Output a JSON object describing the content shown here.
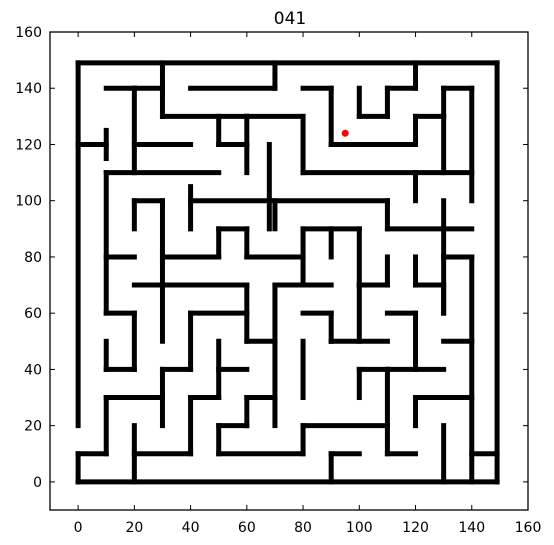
{
  "chart_data": {
    "type": "scatter",
    "title": "041",
    "xlabel": "",
    "ylabel": "",
    "xlim": [
      -10,
      160
    ],
    "ylim": [
      -10,
      160
    ],
    "x_ticks": [
      0,
      20,
      40,
      60,
      80,
      100,
      120,
      140,
      160
    ],
    "y_ticks": [
      0,
      20,
      40,
      60,
      80,
      100,
      120,
      140,
      160
    ],
    "grid": false,
    "wall_color": "#000000",
    "marker_color": "#ff0000",
    "points": [
      {
        "x": 95,
        "y": 124
      }
    ],
    "walls": [
      [
        [
          0,
          149
        ],
        [
          149,
          149
        ]
      ],
      [
        [
          149,
          149
        ],
        [
          149,
          0
        ]
      ],
      [
        [
          0,
          0
        ],
        [
          149,
          0
        ]
      ],
      [
        [
          0,
          0
        ],
        [
          0,
          10
        ]
      ],
      [
        [
          0,
          20
        ],
        [
          0,
          149
        ]
      ],
      [
        [
          0,
          120
        ],
        [
          10,
          120
        ]
      ],
      [
        [
          10,
          115
        ],
        [
          10,
          125
        ]
      ],
      [
        [
          10,
          140
        ],
        [
          20,
          140
        ]
      ],
      [
        [
          20,
          140
        ],
        [
          20,
          110
        ]
      ],
      [
        [
          30,
          149
        ],
        [
          30,
          130
        ]
      ],
      [
        [
          30,
          140
        ],
        [
          20,
          140
        ]
      ],
      [
        [
          40,
          140
        ],
        [
          70,
          140
        ]
      ],
      [
        [
          70,
          149
        ],
        [
          70,
          140
        ]
      ],
      [
        [
          30,
          130
        ],
        [
          60,
          130
        ]
      ],
      [
        [
          50,
          130
        ],
        [
          50,
          120
        ]
      ],
      [
        [
          20,
          120
        ],
        [
          40,
          120
        ]
      ],
      [
        [
          50,
          120
        ],
        [
          60,
          120
        ]
      ],
      [
        [
          60,
          130
        ],
        [
          60,
          110
        ]
      ],
      [
        [
          60,
          130
        ],
        [
          80,
          130
        ]
      ],
      [
        [
          80,
          130
        ],
        [
          80,
          110
        ]
      ],
      [
        [
          68,
          120
        ],
        [
          68,
          90
        ]
      ],
      [
        [
          80,
          140
        ],
        [
          90,
          140
        ]
      ],
      [
        [
          90,
          140
        ],
        [
          90,
          120
        ]
      ],
      [
        [
          90,
          120
        ],
        [
          120,
          120
        ]
      ],
      [
        [
          100,
          140
        ],
        [
          100,
          130
        ]
      ],
      [
        [
          100,
          130
        ],
        [
          110,
          130
        ]
      ],
      [
        [
          110,
          130
        ],
        [
          110,
          140
        ]
      ],
      [
        [
          110,
          140
        ],
        [
          120,
          140
        ]
      ],
      [
        [
          120,
          149
        ],
        [
          120,
          140
        ]
      ],
      [
        [
          130,
          140
        ],
        [
          140,
          140
        ]
      ],
      [
        [
          130,
          140
        ],
        [
          130,
          130
        ]
      ],
      [
        [
          120,
          130
        ],
        [
          130,
          130
        ]
      ],
      [
        [
          120,
          130
        ],
        [
          120,
          120
        ]
      ],
      [
        [
          140,
          140
        ],
        [
          140,
          100
        ]
      ],
      [
        [
          130,
          130
        ],
        [
          130,
          110
        ]
      ],
      [
        [
          80,
          110
        ],
        [
          140,
          110
        ]
      ],
      [
        [
          120,
          110
        ],
        [
          120,
          100
        ]
      ],
      [
        [
          10,
          110
        ],
        [
          50,
          110
        ]
      ],
      [
        [
          10,
          110
        ],
        [
          10,
          60
        ]
      ],
      [
        [
          20,
          100
        ],
        [
          30,
          100
        ]
      ],
      [
        [
          20,
          100
        ],
        [
          20,
          90
        ]
      ],
      [
        [
          30,
          100
        ],
        [
          30,
          50
        ]
      ],
      [
        [
          40,
          105
        ],
        [
          40,
          90
        ]
      ],
      [
        [
          40,
          100
        ],
        [
          110,
          100
        ]
      ],
      [
        [
          110,
          100
        ],
        [
          110,
          90
        ]
      ],
      [
        [
          70,
          100
        ],
        [
          70,
          90
        ]
      ],
      [
        [
          110,
          90
        ],
        [
          140,
          90
        ]
      ],
      [
        [
          130,
          100
        ],
        [
          130,
          60
        ]
      ],
      [
        [
          10,
          80
        ],
        [
          20,
          80
        ]
      ],
      [
        [
          30,
          80
        ],
        [
          50,
          80
        ]
      ],
      [
        [
          50,
          90
        ],
        [
          60,
          90
        ]
      ],
      [
        [
          50,
          90
        ],
        [
          50,
          80
        ]
      ],
      [
        [
          60,
          90
        ],
        [
          60,
          80
        ]
      ],
      [
        [
          60,
          80
        ],
        [
          80,
          80
        ]
      ],
      [
        [
          80,
          90
        ],
        [
          100,
          90
        ]
      ],
      [
        [
          80,
          90
        ],
        [
          80,
          70
        ]
      ],
      [
        [
          90,
          90
        ],
        [
          90,
          80
        ]
      ],
      [
        [
          100,
          90
        ],
        [
          100,
          70
        ]
      ],
      [
        [
          100,
          70
        ],
        [
          110,
          70
        ]
      ],
      [
        [
          20,
          70
        ],
        [
          60,
          70
        ]
      ],
      [
        [
          10,
          60
        ],
        [
          20,
          60
        ]
      ],
      [
        [
          20,
          60
        ],
        [
          20,
          40
        ]
      ],
      [
        [
          40,
          60
        ],
        [
          60,
          60
        ]
      ],
      [
        [
          40,
          60
        ],
        [
          40,
          40
        ]
      ],
      [
        [
          60,
          70
        ],
        [
          60,
          50
        ]
      ],
      [
        [
          70,
          70
        ],
        [
          90,
          70
        ]
      ],
      [
        [
          70,
          70
        ],
        [
          70,
          50
        ]
      ],
      [
        [
          60,
          50
        ],
        [
          70,
          50
        ]
      ],
      [
        [
          80,
          60
        ],
        [
          90,
          60
        ]
      ],
      [
        [
          90,
          60
        ],
        [
          90,
          50
        ]
      ],
      [
        [
          100,
          70
        ],
        [
          100,
          50
        ]
      ],
      [
        [
          90,
          50
        ],
        [
          110,
          50
        ]
      ],
      [
        [
          110,
          80
        ],
        [
          110,
          70
        ]
      ],
      [
        [
          120,
          80
        ],
        [
          120,
          70
        ]
      ],
      [
        [
          120,
          70
        ],
        [
          130,
          70
        ]
      ],
      [
        [
          130,
          70
        ],
        [
          130,
          60
        ]
      ],
      [
        [
          110,
          60
        ],
        [
          120,
          60
        ]
      ],
      [
        [
          120,
          60
        ],
        [
          120,
          40
        ]
      ],
      [
        [
          140,
          80
        ],
        [
          140,
          0
        ]
      ],
      [
        [
          130,
          80
        ],
        [
          140,
          80
        ]
      ],
      [
        [
          130,
          50
        ],
        [
          140,
          50
        ]
      ],
      [
        [
          10,
          50
        ],
        [
          10,
          40
        ]
      ],
      [
        [
          10,
          40
        ],
        [
          20,
          40
        ]
      ],
      [
        [
          30,
          40
        ],
        [
          40,
          40
        ]
      ],
      [
        [
          30,
          40
        ],
        [
          30,
          20
        ]
      ],
      [
        [
          50,
          50
        ],
        [
          50,
          30
        ]
      ],
      [
        [
          50,
          40
        ],
        [
          60,
          40
        ]
      ],
      [
        [
          40,
          30
        ],
        [
          50,
          30
        ]
      ],
      [
        [
          40,
          30
        ],
        [
          40,
          10
        ]
      ],
      [
        [
          10,
          30
        ],
        [
          30,
          30
        ]
      ],
      [
        [
          10,
          30
        ],
        [
          10,
          10
        ]
      ],
      [
        [
          0,
          10
        ],
        [
          10,
          10
        ]
      ],
      [
        [
          20,
          20
        ],
        [
          20,
          0
        ]
      ],
      [
        [
          20,
          10
        ],
        [
          40,
          10
        ]
      ],
      [
        [
          60,
          30
        ],
        [
          70,
          30
        ]
      ],
      [
        [
          60,
          30
        ],
        [
          60,
          20
        ]
      ],
      [
        [
          50,
          20
        ],
        [
          60,
          20
        ]
      ],
      [
        [
          50,
          20
        ],
        [
          50,
          10
        ]
      ],
      [
        [
          50,
          10
        ],
        [
          80,
          10
        ]
      ],
      [
        [
          70,
          50
        ],
        [
          70,
          20
        ]
      ],
      [
        [
          80,
          50
        ],
        [
          80,
          30
        ]
      ],
      [
        [
          80,
          20
        ],
        [
          80,
          10
        ]
      ],
      [
        [
          80,
          20
        ],
        [
          110,
          20
        ]
      ],
      [
        [
          110,
          40
        ],
        [
          110,
          10
        ]
      ],
      [
        [
          100,
          40
        ],
        [
          110,
          40
        ]
      ],
      [
        [
          100,
          40
        ],
        [
          100,
          30
        ]
      ],
      [
        [
          110,
          40
        ],
        [
          130,
          40
        ]
      ],
      [
        [
          90,
          10
        ],
        [
          100,
          10
        ]
      ],
      [
        [
          90,
          10
        ],
        [
          90,
          0
        ]
      ],
      [
        [
          110,
          10
        ],
        [
          120,
          10
        ]
      ],
      [
        [
          120,
          30
        ],
        [
          140,
          30
        ]
      ],
      [
        [
          120,
          30
        ],
        [
          120,
          20
        ]
      ],
      [
        [
          130,
          20
        ],
        [
          130,
          0
        ]
      ],
      [
        [
          140,
          10
        ],
        [
          149,
          10
        ]
      ]
    ]
  }
}
